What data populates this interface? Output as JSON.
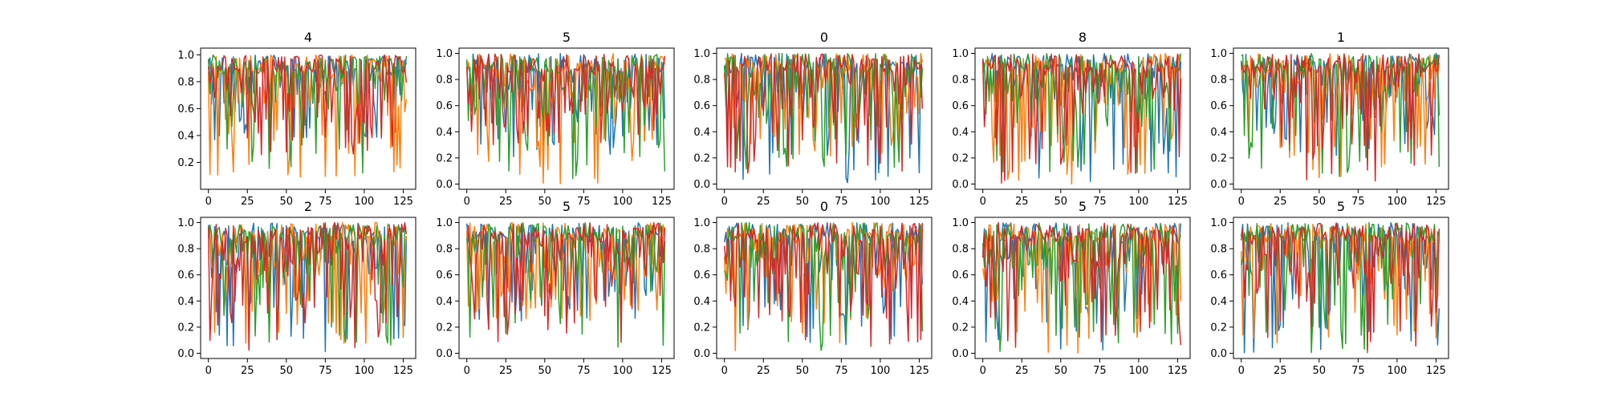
{
  "chart_data": {
    "type": "line",
    "colors": [
      "#1f77b4",
      "#ff7f0e",
      "#2ca02c",
      "#d62728"
    ],
    "grid": false,
    "n_points": 128,
    "xlim": [
      -5,
      133
    ],
    "x_ticks": [
      0,
      25,
      50,
      75,
      100,
      125
    ],
    "panels": [
      {
        "title": "4",
        "ylim": [
          0.0,
          1.05
        ],
        "y_ticks": [
          "0.2",
          "0.4",
          "0.6",
          "0.8",
          "1.0"
        ],
        "y_tick_values": [
          0.2,
          0.4,
          0.6,
          0.8,
          1.0
        ],
        "seed": 11,
        "floor": 0.05,
        "series": [
          {
            "color_index": 0,
            "min": 0.35
          },
          {
            "color_index": 1,
            "min": 0.05
          },
          {
            "color_index": 2,
            "min": 0.12
          },
          {
            "color_index": 3,
            "min": 0.25
          }
        ]
      },
      {
        "title": "5",
        "ylim": [
          -0.04,
          1.04
        ],
        "y_ticks": [
          "0.0",
          "0.2",
          "0.4",
          "0.6",
          "0.8",
          "1.0"
        ],
        "y_tick_values": [
          0,
          0.2,
          0.4,
          0.6,
          0.8,
          1.0
        ],
        "seed": 23,
        "floor": 0.0,
        "series": [
          {
            "color_index": 0,
            "min": 0.2
          },
          {
            "color_index": 1,
            "min": 0.0
          },
          {
            "color_index": 2,
            "min": 0.0
          },
          {
            "color_index": 3,
            "min": 0.3
          }
        ]
      },
      {
        "title": "0",
        "ylim": [
          -0.04,
          1.04
        ],
        "y_ticks": [
          "0.0",
          "0.2",
          "0.4",
          "0.6",
          "0.8",
          "1.0"
        ],
        "y_tick_values": [
          0,
          0.2,
          0.4,
          0.6,
          0.8,
          1.0
        ],
        "seed": 37,
        "floor": 0.0,
        "series": [
          {
            "color_index": 0,
            "min": 0.0
          },
          {
            "color_index": 1,
            "min": 0.2
          },
          {
            "color_index": 2,
            "min": 0.1
          },
          {
            "color_index": 3,
            "min": 0.0
          }
        ]
      },
      {
        "title": "8",
        "ylim": [
          -0.04,
          1.04
        ],
        "y_ticks": [
          "0.0",
          "0.2",
          "0.4",
          "0.6",
          "0.8",
          "1.0"
        ],
        "y_tick_values": [
          0,
          0.2,
          0.4,
          0.6,
          0.8,
          1.0
        ],
        "seed": 41,
        "floor": 0.0,
        "series": [
          {
            "color_index": 0,
            "min": 0.0
          },
          {
            "color_index": 1,
            "min": 0.0
          },
          {
            "color_index": 2,
            "min": 0.0
          },
          {
            "color_index": 3,
            "min": 0.0
          }
        ]
      },
      {
        "title": "1",
        "ylim": [
          -0.04,
          1.04
        ],
        "y_ticks": [
          "0.0",
          "0.2",
          "0.4",
          "0.6",
          "0.8",
          "1.0"
        ],
        "y_tick_values": [
          0,
          0.2,
          0.4,
          0.6,
          0.8,
          1.0
        ],
        "seed": 53,
        "floor": 0.0,
        "series": [
          {
            "color_index": 0,
            "min": 0.2
          },
          {
            "color_index": 1,
            "min": 0.0
          },
          {
            "color_index": 2,
            "min": 0.0
          },
          {
            "color_index": 3,
            "min": 0.0
          }
        ]
      },
      {
        "title": "2",
        "ylim": [
          -0.04,
          1.04
        ],
        "y_ticks": [
          "0.0",
          "0.2",
          "0.4",
          "0.6",
          "0.8",
          "1.0"
        ],
        "y_tick_values": [
          0,
          0.2,
          0.4,
          0.6,
          0.8,
          1.0
        ],
        "seed": 61,
        "floor": 0.0,
        "series": [
          {
            "color_index": 0,
            "min": 0.0
          },
          {
            "color_index": 1,
            "min": 0.05
          },
          {
            "color_index": 2,
            "min": 0.05
          },
          {
            "color_index": 3,
            "min": 0.02
          }
        ]
      },
      {
        "title": "5",
        "ylim": [
          -0.04,
          1.04
        ],
        "y_ticks": [
          "0.0",
          "0.2",
          "0.4",
          "0.6",
          "0.8",
          "1.0"
        ],
        "y_tick_values": [
          0,
          0.2,
          0.4,
          0.6,
          0.8,
          1.0
        ],
        "seed": 71,
        "floor": 0.0,
        "series": [
          {
            "color_index": 0,
            "min": 0.2
          },
          {
            "color_index": 1,
            "min": 0.25
          },
          {
            "color_index": 2,
            "min": 0.0
          },
          {
            "color_index": 3,
            "min": 0.05
          }
        ]
      },
      {
        "title": "0",
        "ylim": [
          -0.04,
          1.04
        ],
        "y_ticks": [
          "0.0",
          "0.2",
          "0.4",
          "0.6",
          "0.8",
          "1.0"
        ],
        "y_tick_values": [
          0,
          0.2,
          0.4,
          0.6,
          0.8,
          1.0
        ],
        "seed": 83,
        "floor": 0.0,
        "series": [
          {
            "color_index": 0,
            "min": 0.05
          },
          {
            "color_index": 1,
            "min": 0.0
          },
          {
            "color_index": 2,
            "min": 0.0
          },
          {
            "color_index": 3,
            "min": 0.05
          }
        ]
      },
      {
        "title": "5",
        "ylim": [
          -0.04,
          1.04
        ],
        "y_ticks": [
          "0.0",
          "0.2",
          "0.4",
          "0.6",
          "0.8",
          "1.0"
        ],
        "y_tick_values": [
          0,
          0.2,
          0.4,
          0.6,
          0.8,
          1.0
        ],
        "seed": 97,
        "floor": 0.0,
        "series": [
          {
            "color_index": 0,
            "min": 0.0
          },
          {
            "color_index": 1,
            "min": 0.0
          },
          {
            "color_index": 2,
            "min": 0.0
          },
          {
            "color_index": 3,
            "min": 0.02
          }
        ]
      },
      {
        "title": "5",
        "ylim": [
          -0.04,
          1.04
        ],
        "y_ticks": [
          "0.0",
          "0.2",
          "0.4",
          "0.6",
          "0.8",
          "1.0"
        ],
        "y_tick_values": [
          0,
          0.2,
          0.4,
          0.6,
          0.8,
          1.0
        ],
        "seed": 103,
        "floor": 0.0,
        "series": [
          {
            "color_index": 0,
            "min": 0.0
          },
          {
            "color_index": 1,
            "min": 0.05
          },
          {
            "color_index": 2,
            "min": 0.0
          },
          {
            "color_index": 3,
            "min": 0.0
          }
        ]
      }
    ]
  }
}
